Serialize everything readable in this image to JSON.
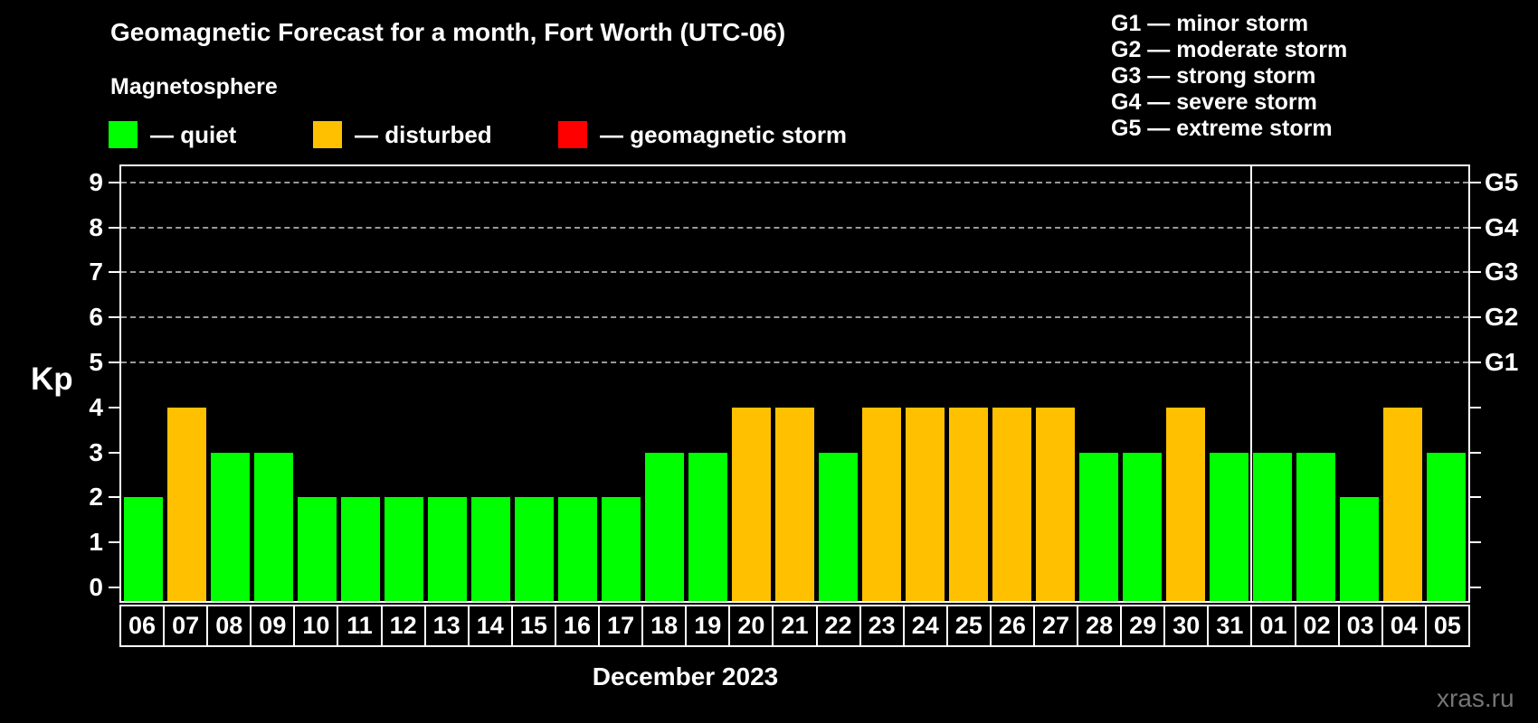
{
  "header": {
    "title": "Geomagnetic Forecast for a month, Fort Worth (UTC-06)",
    "subtitle": "Magnetosphere"
  },
  "legend": {
    "items": [
      {
        "key": "quiet",
        "label": "— quiet",
        "color": "#00ff00"
      },
      {
        "key": "disturbed",
        "label": "— disturbed",
        "color": "#ffc000"
      },
      {
        "key": "storm",
        "label": "— geomagnetic storm",
        "color": "#ff0000"
      }
    ]
  },
  "g_scale_legend": {
    "items": [
      "G1 — minor storm",
      "G2 — moderate storm",
      "G3 — strong storm",
      "G4 — severe storm",
      "G5 — extreme storm"
    ]
  },
  "chart_data": {
    "type": "bar",
    "title": "Geomagnetic Forecast for a month, Fort Worth (UTC-06)",
    "ylabel": "Kp",
    "xlabel": "December 2023",
    "ylim": [
      0,
      9.5
    ],
    "yticks": [
      0,
      1,
      2,
      3,
      4,
      5,
      6,
      7,
      8,
      9
    ],
    "grid_dashed_at": [
      5,
      6,
      7,
      8,
      9
    ],
    "legend_position": "top",
    "right_axis": [
      {
        "label": "G1",
        "kp": 5
      },
      {
        "label": "G2",
        "kp": 6
      },
      {
        "label": "G3",
        "kp": 7
      },
      {
        "label": "G4",
        "kp": 8
      },
      {
        "label": "G5",
        "kp": 9
      }
    ],
    "status_colors": {
      "quiet": "#00ff00",
      "disturbed": "#ffc000",
      "storm": "#ff0000"
    },
    "month_separator_after_index": 25,
    "bars": [
      {
        "day": "06",
        "kp": 2,
        "status": "quiet"
      },
      {
        "day": "07",
        "kp": 4,
        "status": "disturbed"
      },
      {
        "day": "08",
        "kp": 3,
        "status": "quiet"
      },
      {
        "day": "09",
        "kp": 3,
        "status": "quiet"
      },
      {
        "day": "10",
        "kp": 2,
        "status": "quiet"
      },
      {
        "day": "11",
        "kp": 2,
        "status": "quiet"
      },
      {
        "day": "12",
        "kp": 2,
        "status": "quiet"
      },
      {
        "day": "13",
        "kp": 2,
        "status": "quiet"
      },
      {
        "day": "14",
        "kp": 2,
        "status": "quiet"
      },
      {
        "day": "15",
        "kp": 2,
        "status": "quiet"
      },
      {
        "day": "16",
        "kp": 2,
        "status": "quiet"
      },
      {
        "day": "17",
        "kp": 2,
        "status": "quiet"
      },
      {
        "day": "18",
        "kp": 3,
        "status": "quiet"
      },
      {
        "day": "19",
        "kp": 3,
        "status": "quiet"
      },
      {
        "day": "20",
        "kp": 4,
        "status": "disturbed"
      },
      {
        "day": "21",
        "kp": 4,
        "status": "disturbed"
      },
      {
        "day": "22",
        "kp": 3,
        "status": "quiet"
      },
      {
        "day": "23",
        "kp": 4,
        "status": "disturbed"
      },
      {
        "day": "24",
        "kp": 4,
        "status": "disturbed"
      },
      {
        "day": "25",
        "kp": 4,
        "status": "disturbed"
      },
      {
        "day": "26",
        "kp": 4,
        "status": "disturbed"
      },
      {
        "day": "27",
        "kp": 4,
        "status": "disturbed"
      },
      {
        "day": "28",
        "kp": 3,
        "status": "quiet"
      },
      {
        "day": "29",
        "kp": 3,
        "status": "quiet"
      },
      {
        "day": "30",
        "kp": 4,
        "status": "disturbed"
      },
      {
        "day": "31",
        "kp": 3,
        "status": "quiet"
      },
      {
        "day": "01",
        "kp": 3,
        "status": "quiet"
      },
      {
        "day": "02",
        "kp": 3,
        "status": "quiet"
      },
      {
        "day": "03",
        "kp": 2,
        "status": "quiet"
      },
      {
        "day": "04",
        "kp": 4,
        "status": "disturbed"
      },
      {
        "day": "05",
        "kp": 3,
        "status": "quiet"
      }
    ]
  },
  "footer": {
    "month_label": "December 2023",
    "watermark": "xras.ru"
  }
}
